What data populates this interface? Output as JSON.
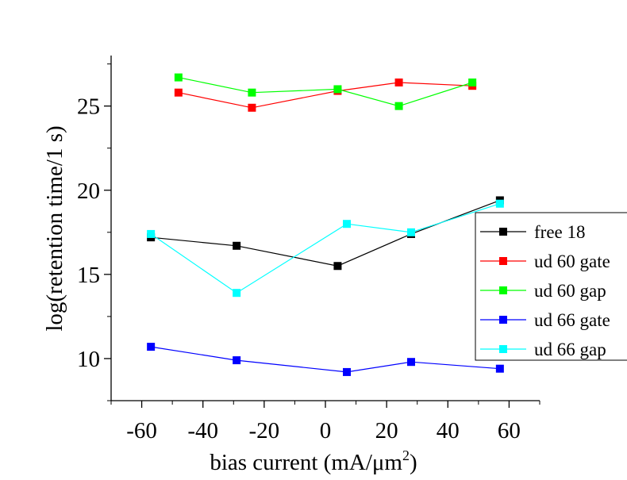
{
  "chart_data": {
    "type": "line",
    "title": "",
    "xlabel_main": "bias current (mA/μm",
    "xlabel_sup": "2",
    "xlabel_end": ")",
    "ylabel": "log(retention time/1 s)",
    "xlim": [
      -70,
      70
    ],
    "ylim": [
      7.5,
      28
    ],
    "x_ticks": [
      -60,
      -40,
      -20,
      0,
      20,
      40,
      60
    ],
    "x_tick_labels": [
      "-60",
      "-40",
      "-20",
      "0",
      "20",
      "40",
      "60"
    ],
    "y_ticks": [
      10,
      15,
      20,
      25
    ],
    "y_tick_labels": [
      "10",
      "15",
      "20",
      "25"
    ],
    "legend_position": "right",
    "series": [
      {
        "name": "free 18",
        "color": "#000000",
        "x": [
          -57,
          -29,
          4,
          28,
          57
        ],
        "y": [
          17.2,
          16.7,
          15.5,
          17.4,
          19.4
        ]
      },
      {
        "name": "ud 60 gate",
        "color": "#ff0000",
        "x": [
          -48,
          -24,
          4,
          24,
          48
        ],
        "y": [
          25.8,
          24.9,
          25.9,
          26.4,
          26.2
        ]
      },
      {
        "name": "ud 60 gap",
        "color": "#00ff00",
        "x": [
          -48,
          -24,
          4,
          24,
          48
        ],
        "y": [
          26.7,
          25.8,
          26.0,
          25.0,
          26.4
        ]
      },
      {
        "name": "ud 66 gate",
        "color": "#0000ff",
        "x": [
          -57,
          -29,
          7,
          28,
          57
        ],
        "y": [
          10.7,
          9.9,
          9.2,
          9.8,
          9.4
        ]
      },
      {
        "name": "ud 66 gap",
        "color": "#00ffff",
        "x": [
          -57,
          -29,
          7,
          28,
          57
        ],
        "y": [
          17.4,
          13.9,
          18.0,
          17.5,
          19.2
        ]
      }
    ]
  }
}
